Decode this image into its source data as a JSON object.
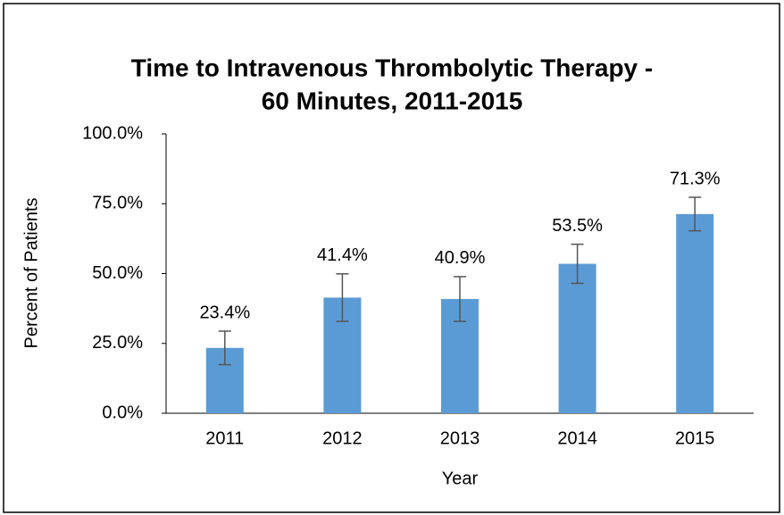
{
  "chart_data": {
    "type": "bar",
    "title": [
      "Time to Intravenous Thrombolytic Therapy -",
      "60 Minutes, 2011-2015"
    ],
    "x_label": "Year",
    "y_label": "Percent of Patients",
    "categories": [
      "2011",
      "2012",
      "2013",
      "2014",
      "2015"
    ],
    "values": [
      23.4,
      41.4,
      40.9,
      53.5,
      71.3
    ],
    "value_labels": [
      "23.4%",
      "41.4%",
      "40.9%",
      "53.5%",
      "71.3%"
    ],
    "errors": [
      6,
      8.5,
      8,
      7,
      6
    ],
    "color": "#5b9bd5",
    "ylim": [
      0,
      100
    ],
    "yticks": [
      {
        "value": 0,
        "label": "0.0%"
      },
      {
        "value": 25,
        "label": "25.0%"
      },
      {
        "value": 50,
        "label": "50.0%"
      },
      {
        "value": 75,
        "label": "75.0%"
      },
      {
        "value": 100,
        "label": "100.0%"
      }
    ],
    "grid": false
  }
}
